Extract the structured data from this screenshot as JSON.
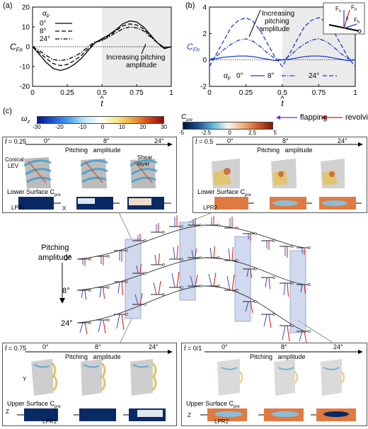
{
  "panel_labels": {
    "a": "(a)",
    "b": "(b)",
    "c": "(c)"
  },
  "chart_data": [
    {
      "type": "line",
      "ylabel": "C",
      "ylabel_sub": "Fn",
      "xlabel": "t",
      "xlim": [
        0,
        1
      ],
      "ylim": [
        -20,
        20
      ],
      "x_ticks": [
        "0",
        "0.25",
        "0.5",
        "0.75",
        "1"
      ],
      "y_ticks": [
        "-20",
        "-10",
        "0",
        "10",
        "20"
      ],
      "shaded_region": [
        0.5,
        1
      ],
      "legend_title": "α",
      "legend_title_sub": "p",
      "legend_placement": "top-left",
      "series": [
        {
          "name": "0°",
          "style": "solid",
          "x": [
            0,
            0.05,
            0.1,
            0.15,
            0.2,
            0.25,
            0.3,
            0.35,
            0.4,
            0.45,
            0.5,
            0.55,
            0.6,
            0.65,
            0.7,
            0.75,
            0.8,
            0.85,
            0.9,
            0.95,
            1
          ],
          "y": [
            0,
            -4,
            -8,
            -11,
            -12,
            -11,
            -9,
            -6,
            -2,
            2,
            4,
            6,
            8.5,
            11.5,
            13,
            12.5,
            10,
            6,
            2,
            -1,
            0
          ]
        },
        {
          "name": "8°",
          "style": "dash",
          "x": [
            0,
            0.05,
            0.1,
            0.15,
            0.2,
            0.25,
            0.3,
            0.35,
            0.4,
            0.45,
            0.5,
            0.55,
            0.6,
            0.65,
            0.7,
            0.75,
            0.8,
            0.85,
            0.9,
            0.95,
            1
          ],
          "y": [
            0,
            -3,
            -6,
            -8.5,
            -9.5,
            -9,
            -7,
            -4.5,
            -1,
            2,
            3.5,
            5.5,
            8,
            10.5,
            11.5,
            11,
            9,
            5.5,
            2,
            -0.5,
            0
          ]
        },
        {
          "name": "24°",
          "style": "dash-dot",
          "x": [
            0,
            0.05,
            0.1,
            0.15,
            0.2,
            0.25,
            0.3,
            0.35,
            0.4,
            0.45,
            0.5,
            0.55,
            0.6,
            0.65,
            0.7,
            0.75,
            0.8,
            0.85,
            0.9,
            0.95,
            1
          ],
          "y": [
            0,
            -2,
            -4.5,
            -6.5,
            -7,
            -6.5,
            -5,
            -3,
            0,
            2.5,
            3,
            5,
            7,
            9,
            10,
            9.5,
            8,
            5,
            2,
            -0.5,
            0
          ]
        }
      ],
      "annotation": "Increasing pitching amplitude"
    },
    {
      "type": "line",
      "ylabel": "C",
      "ylabel_sub": "Fh",
      "xlabel": "t",
      "xlim": [
        0,
        1
      ],
      "ylim": [
        -2,
        4
      ],
      "x_ticks": [
        "0",
        "0.25",
        "0.5",
        "0.75",
        "1"
      ],
      "y_ticks": [
        "-2",
        "0",
        "2",
        "4"
      ],
      "shaded_region": [
        0.5,
        1
      ],
      "legend_title": "α",
      "legend_title_sub": "p",
      "legend_placement": "bottom-left",
      "series": [
        {
          "name": "0°",
          "style": "solid",
          "x": [
            0,
            0.05,
            0.1,
            0.15,
            0.2,
            0.25,
            0.3,
            0.35,
            0.4,
            0.45,
            0.5,
            0.55,
            0.6,
            0.65,
            0.7,
            0.75,
            0.8,
            0.85,
            0.9,
            0.95,
            1
          ],
          "y": [
            0,
            0.1,
            0.2,
            0.25,
            0.3,
            0.3,
            0.25,
            0.15,
            0.05,
            -0.05,
            0,
            0.05,
            0.15,
            0.25,
            0.3,
            0.3,
            0.25,
            0.15,
            0.05,
            -0.05,
            0
          ]
        },
        {
          "name": "8°",
          "style": "dash-dot",
          "x": [
            0,
            0.05,
            0.1,
            0.15,
            0.2,
            0.25,
            0.3,
            0.35,
            0.4,
            0.45,
            0.5,
            0.55,
            0.6,
            0.65,
            0.7,
            0.75,
            0.8,
            0.85,
            0.9,
            0.95,
            1
          ],
          "y": [
            0,
            0.3,
            0.8,
            1.2,
            1.5,
            1.6,
            1.4,
            1.0,
            0.5,
            0.1,
            0,
            0.3,
            0.8,
            1.2,
            1.5,
            1.6,
            1.4,
            1.0,
            0.5,
            0.1,
            0
          ]
        },
        {
          "name": "24°",
          "style": "dash",
          "x": [
            0,
            0.05,
            0.1,
            0.15,
            0.2,
            0.25,
            0.3,
            0.35,
            0.4,
            0.45,
            0.5,
            0.55,
            0.6,
            0.65,
            0.7,
            0.75,
            0.8,
            0.85,
            0.9,
            0.95,
            1
          ],
          "y": [
            -0.5,
            0.5,
            1.5,
            2.5,
            3.0,
            3.2,
            2.9,
            2.2,
            1.2,
            0.2,
            -0.5,
            0.5,
            1.5,
            2.5,
            3.0,
            3.2,
            2.9,
            2.2,
            1.2,
            0.2,
            -0.5
          ]
        }
      ],
      "annotation": "Increasing pitching amplitude"
    }
  ],
  "inset": {
    "fv": "F",
    "fv_sub": "v",
    "fn": "F",
    "fn_sub": "n",
    "fh": "F",
    "fh_sub": "h",
    "beta": "β"
  },
  "colorbars": {
    "wz": {
      "label": "ω",
      "label_sub": "z",
      "ticks": [
        "-30",
        "-20",
        "-10",
        "0",
        "10",
        "20",
        "30"
      ]
    },
    "cpre": {
      "label": "C",
      "label_sub": "pre",
      "ticks": [
        "-5",
        "-2.5",
        "0",
        "2.5",
        "5"
      ]
    }
  },
  "arrows_legend": {
    "flapping": "flapping",
    "revolving": "revolving"
  },
  "boxes": {
    "tl": {
      "time": "= 0.25",
      "angles": [
        "0°",
        "8°",
        "24°"
      ],
      "title": "Pitching   amplitude",
      "surface": "Lower Surface C",
      "surface_sub": "pre",
      "labels": [
        "Conical",
        "LEV",
        "Shear",
        "layer",
        "LPR1"
      ]
    },
    "tr": {
      "time": "= 0.5",
      "angles": [
        "0°",
        "8°",
        "24°"
      ],
      "title": "Pitching   amplitude",
      "surface": "Lower Surface C",
      "surface_sub": "pre",
      "labels": [
        "LPR2"
      ]
    },
    "bl": {
      "time": "= 0.75",
      "angles": [
        "0°",
        "8°",
        "24°"
      ],
      "title": "Pitching   amplitude",
      "surface": "Upper Surface C",
      "surface_sub": "pre",
      "labels": [
        "LPR1"
      ]
    },
    "br": {
      "time": "= 0/1",
      "angles": [
        "0°",
        "8°",
        "24°"
      ],
      "title": "Pitching   amplitude",
      "surface": "Upper Surface C",
      "surface_sub": "pre",
      "labels": [
        "LPR2"
      ]
    }
  },
  "middle": {
    "heading1": "Pitching",
    "heading2": "amplitude",
    "rows": [
      "0°",
      "8°",
      "24°"
    ]
  },
  "axes_letters": {
    "x": "X",
    "y": "Y",
    "z": "Z"
  },
  "tick_hat": "^"
}
